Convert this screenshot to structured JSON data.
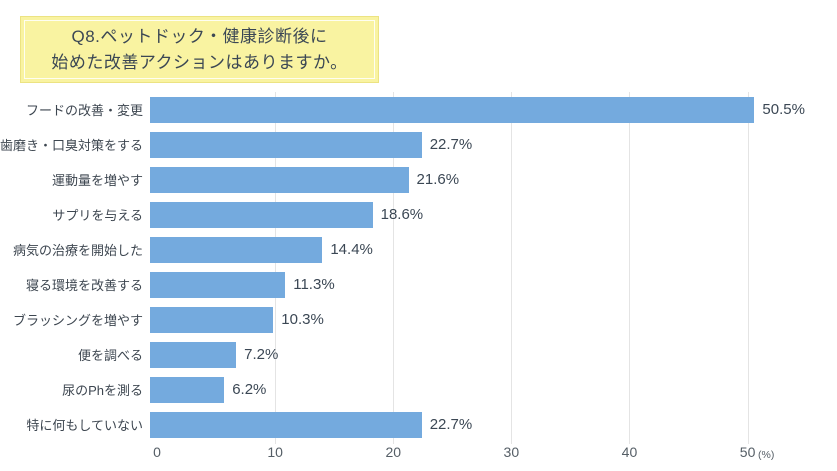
{
  "title": {
    "line1": "Q8.ペットドック・健康診断後に",
    "line2": "始めた改善アクションはありますか。"
  },
  "chart_data": {
    "type": "bar",
    "orientation": "horizontal",
    "title": "Q8.ペットドック・健康診断後に始めた改善アクションはありますか。",
    "categories": [
      "フードの改善・変更",
      "歯磨き・口臭対策をする",
      "運動量を増やす",
      "サプリを与える",
      "病気の治療を開始した",
      "寝る環境を改善する",
      "ブラッシングを増やす",
      "便を調べる",
      "尿のPhを測る",
      "特に何もしていない"
    ],
    "values": [
      50.5,
      22.7,
      21.6,
      18.6,
      14.4,
      11.3,
      10.3,
      7.2,
      6.2,
      22.7
    ],
    "value_labels": [
      "50.5%",
      "22.7%",
      "21.6%",
      "18.6%",
      "14.4%",
      "11.3%",
      "10.3%",
      "7.2%",
      "6.2%",
      "22.7%"
    ],
    "xlabel": "(%)",
    "ylabel": "",
    "xticks": [
      0,
      10,
      20,
      30,
      40,
      50
    ],
    "xtick_labels": [
      "0",
      "10",
      "20",
      "30",
      "40",
      "50"
    ],
    "xlim": [
      0,
      57.4
    ],
    "grid": true,
    "legend": "none",
    "bar_color": "#74aade",
    "grid_color": "#e4e4e4",
    "title_box_bg": "#f9f3a1",
    "title_box_border": "#ece382",
    "text_color": "#3b4754"
  }
}
